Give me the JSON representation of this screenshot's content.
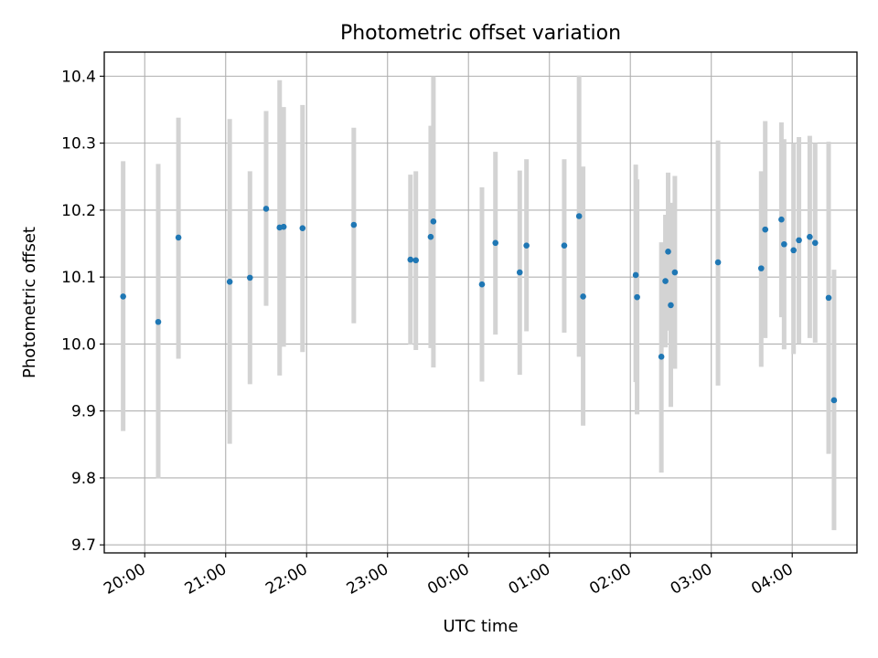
{
  "chart_data": {
    "type": "scatter",
    "title": "Photometric offset variation",
    "xlabel": "UTC time",
    "ylabel": "Photometric offset",
    "x_axis_kind": "time",
    "xlim": [
      "19:30",
      "04:48"
    ],
    "ylim": [
      9.688,
      10.436
    ],
    "y_ticks": [
      9.7,
      9.8,
      9.9,
      10.0,
      10.1,
      10.2,
      10.3,
      10.4
    ],
    "x_ticks": [
      "20:00",
      "21:00",
      "22:00",
      "23:00",
      "00:00",
      "01:00",
      "02:00",
      "03:00",
      "04:00"
    ],
    "grid": true,
    "legend": "none",
    "point_color": "#1f77b4",
    "errorbar_color": "#d3d3d3",
    "series": [
      {
        "points": [
          {
            "x": "19:44",
            "y": 10.071,
            "low": 9.87,
            "high": 10.273
          },
          {
            "x": "20:10",
            "y": 10.033,
            "low": 9.799,
            "high": 10.269
          },
          {
            "x": "20:25",
            "y": 10.159,
            "low": 9.978,
            "high": 10.338
          },
          {
            "x": "21:03",
            "y": 10.093,
            "low": 9.851,
            "high": 10.336
          },
          {
            "x": "21:18",
            "y": 10.099,
            "low": 9.94,
            "high": 10.258
          },
          {
            "x": "21:30",
            "y": 10.202,
            "low": 10.057,
            "high": 10.348
          },
          {
            "x": "21:40",
            "y": 10.174,
            "low": 9.953,
            "high": 10.394
          },
          {
            "x": "21:43",
            "y": 10.175,
            "low": 9.996,
            "high": 10.354
          },
          {
            "x": "21:57",
            "y": 10.173,
            "low": 9.988,
            "high": 10.357
          },
          {
            "x": "22:35",
            "y": 10.178,
            "low": 10.031,
            "high": 10.323
          },
          {
            "x": "23:17",
            "y": 10.126,
            "low": 9.999,
            "high": 10.253
          },
          {
            "x": "23:21",
            "y": 10.125,
            "low": 9.991,
            "high": 10.258
          },
          {
            "x": "23:32",
            "y": 10.16,
            "low": 9.994,
            "high": 10.326
          },
          {
            "x": "23:34",
            "y": 10.183,
            "low": 9.965,
            "high": 10.4
          },
          {
            "x": "00:10",
            "y": 10.089,
            "low": 9.944,
            "high": 10.234
          },
          {
            "x": "00:20",
            "y": 10.151,
            "low": 10.014,
            "high": 10.287
          },
          {
            "x": "00:38",
            "y": 10.107,
            "low": 9.954,
            "high": 10.259
          },
          {
            "x": "00:43",
            "y": 10.147,
            "low": 10.019,
            "high": 10.276
          },
          {
            "x": "01:11",
            "y": 10.147,
            "low": 10.017,
            "high": 10.276
          },
          {
            "x": "01:22",
            "y": 10.191,
            "low": 9.981,
            "high": 10.401
          },
          {
            "x": "01:25",
            "y": 10.071,
            "low": 9.878,
            "high": 10.265
          },
          {
            "x": "02:04",
            "y": 10.103,
            "low": 9.943,
            "high": 10.268
          },
          {
            "x": "02:05",
            "y": 10.07,
            "low": 9.895,
            "high": 10.246
          },
          {
            "x": "02:23",
            "y": 9.981,
            "low": 9.808,
            "high": 10.152
          },
          {
            "x": "02:26",
            "y": 10.094,
            "low": 9.995,
            "high": 10.193
          },
          {
            "x": "02:28",
            "y": 10.138,
            "low": 10.02,
            "high": 10.256
          },
          {
            "x": "02:30",
            "y": 10.058,
            "low": 9.906,
            "high": 10.211
          },
          {
            "x": "02:33",
            "y": 10.107,
            "low": 9.963,
            "high": 10.251
          },
          {
            "x": "03:05",
            "y": 10.122,
            "low": 9.938,
            "high": 10.304
          },
          {
            "x": "03:37",
            "y": 10.113,
            "low": 9.966,
            "high": 10.258
          },
          {
            "x": "03:40",
            "y": 10.171,
            "low": 10.009,
            "high": 10.333
          },
          {
            "x": "03:52",
            "y": 10.186,
            "low": 10.04,
            "high": 10.331
          },
          {
            "x": "03:54",
            "y": 10.149,
            "low": 9.992,
            "high": 10.306
          },
          {
            "x": "04:01",
            "y": 10.14,
            "low": 9.985,
            "high": 10.3
          },
          {
            "x": "04:05",
            "y": 10.155,
            "low": 10.0,
            "high": 10.309
          },
          {
            "x": "04:13",
            "y": 10.16,
            "low": 10.009,
            "high": 10.311
          },
          {
            "x": "04:17",
            "y": 10.151,
            "low": 10.002,
            "high": 10.3
          },
          {
            "x": "04:27",
            "y": 10.069,
            "low": 9.836,
            "high": 10.302
          },
          {
            "x": "04:31",
            "y": 9.916,
            "low": 9.722,
            "high": 10.111
          }
        ]
      }
    ]
  }
}
